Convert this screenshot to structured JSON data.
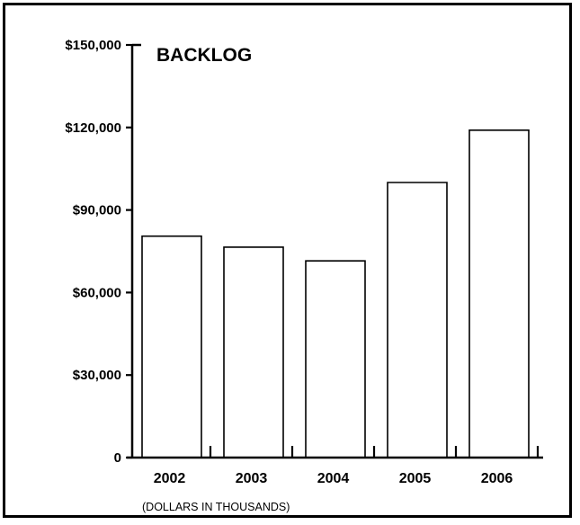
{
  "chart_data": {
    "type": "bar",
    "title": "BACKLOG",
    "note": "(DOLLARS IN THOUSANDS)",
    "xlabel": "",
    "ylabel": "",
    "categories": [
      "2002",
      "2003",
      "2004",
      "2005",
      "2006"
    ],
    "values": [
      80500,
      76500,
      71500,
      100000,
      119000
    ],
    "ylim": [
      0,
      150000
    ],
    "yticks": [
      0,
      30000,
      60000,
      90000,
      120000,
      150000
    ],
    "ytick_labels": [
      "0",
      "$30,000",
      "$60,000",
      "$90,000",
      "$120,000",
      "$150,000"
    ],
    "grid": false,
    "legend": "none",
    "bar_color": "#ffffff",
    "line_color": "#000000"
  }
}
